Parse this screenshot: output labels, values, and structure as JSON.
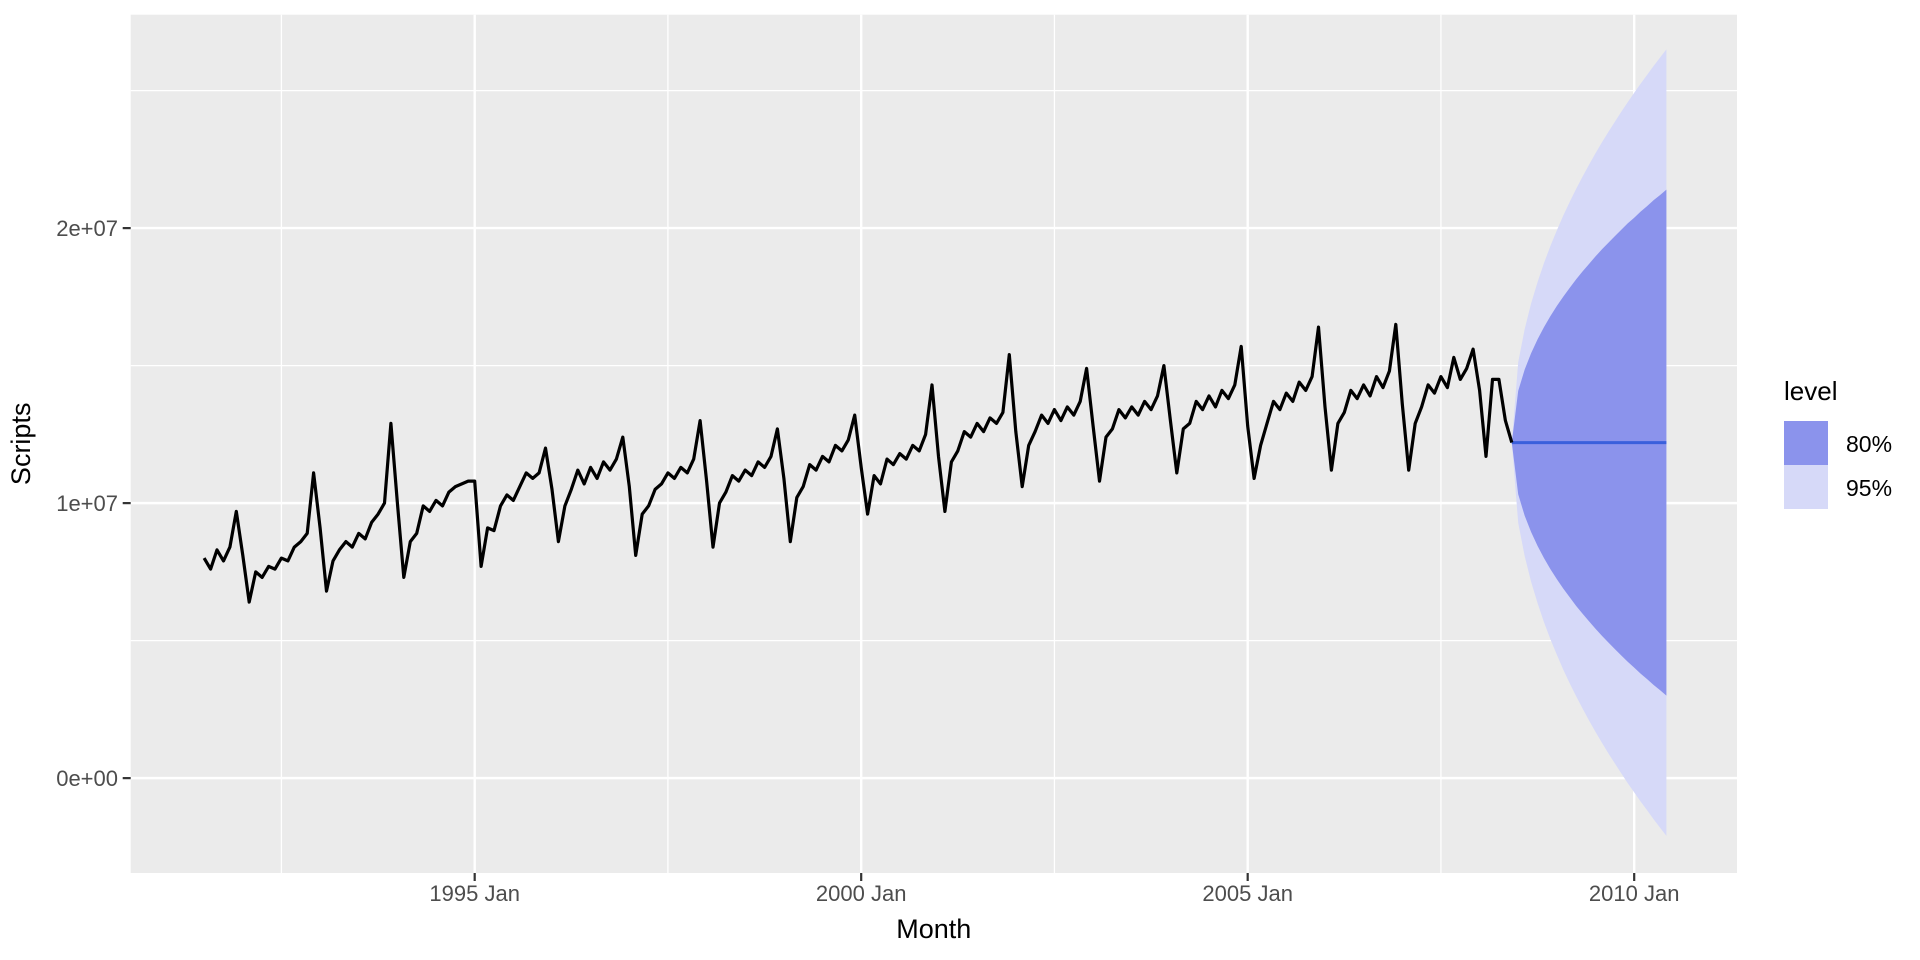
{
  "chart_data": {
    "type": "line",
    "title": "",
    "xlabel": "Month",
    "ylabel": "Scripts",
    "legend": {
      "title": "level",
      "position": "right",
      "entries": [
        {
          "label": "80%",
          "color": "#8B93EC"
        },
        {
          "label": "95%",
          "color": "#D6D9F8"
        }
      ]
    },
    "x_axis": {
      "range": [
        1990.55,
        2011.33
      ],
      "ticks": [
        {
          "value": 1995.0,
          "label": "1995 Jan"
        },
        {
          "value": 2000.0,
          "label": "2000 Jan"
        },
        {
          "value": 2005.0,
          "label": "2005 Jan"
        },
        {
          "value": 2010.0,
          "label": "2010 Jan"
        }
      ],
      "minor_ticks": [
        1992.5,
        1997.5,
        2002.5,
        2007.5
      ]
    },
    "y_axis": {
      "range": [
        -3450000,
        27760000
      ],
      "ticks": [
        {
          "value": 0,
          "label": "0e+00"
        },
        {
          "value": 10000000,
          "label": "1e+07"
        },
        {
          "value": 20000000,
          "label": "2e+07"
        }
      ],
      "minor_ticks": [
        5000000,
        15000000,
        25000000
      ]
    },
    "grid": {
      "on": true,
      "major_color": "#FFFFFF",
      "minor_color": "#FFFFFF",
      "panel_bg": "#EBEBEB"
    },
    "series": {
      "name": "Scripts",
      "color": "#000000",
      "start_year": 1991,
      "start_month": 7,
      "frequency": 12,
      "unit": 1000000,
      "values_millions": [
        8.0,
        7.6,
        8.3,
        7.9,
        8.4,
        9.7,
        8.1,
        6.4,
        7.5,
        7.3,
        7.7,
        7.6,
        8.0,
        7.9,
        8.4,
        8.6,
        8.9,
        11.1,
        9.1,
        6.8,
        7.9,
        8.3,
        8.6,
        8.4,
        8.9,
        8.7,
        9.3,
        9.6,
        10.0,
        12.9,
        10.0,
        7.3,
        8.6,
        8.9,
        9.9,
        9.7,
        10.1,
        9.9,
        10.4,
        10.6,
        10.7,
        10.8,
        10.8,
        7.7,
        9.1,
        9.0,
        9.9,
        10.3,
        10.1,
        10.6,
        11.1,
        10.9,
        11.1,
        12.0,
        10.5,
        8.6,
        9.9,
        10.5,
        11.2,
        10.7,
        11.3,
        10.9,
        11.5,
        11.2,
        11.6,
        12.4,
        10.6,
        8.1,
        9.6,
        9.9,
        10.5,
        10.7,
        11.1,
        10.9,
        11.3,
        11.1,
        11.6,
        13.0,
        10.8,
        8.4,
        10.0,
        10.4,
        11.0,
        10.8,
        11.2,
        11.0,
        11.5,
        11.3,
        11.7,
        12.7,
        10.9,
        8.6,
        10.2,
        10.6,
        11.4,
        11.2,
        11.7,
        11.5,
        12.1,
        11.9,
        12.3,
        13.2,
        11.3,
        9.6,
        11.0,
        10.7,
        11.6,
        11.4,
        11.8,
        11.6,
        12.1,
        11.9,
        12.5,
        14.3,
        11.7,
        9.7,
        11.5,
        11.9,
        12.6,
        12.4,
        12.9,
        12.6,
        13.1,
        12.9,
        13.3,
        15.4,
        12.6,
        10.6,
        12.1,
        12.6,
        13.2,
        12.9,
        13.4,
        13.0,
        13.5,
        13.2,
        13.7,
        14.9,
        12.8,
        10.8,
        12.4,
        12.7,
        13.4,
        13.1,
        13.5,
        13.2,
        13.7,
        13.4,
        13.9,
        15.0,
        13.0,
        11.1,
        12.7,
        12.9,
        13.7,
        13.4,
        13.9,
        13.5,
        14.1,
        13.8,
        14.3,
        15.7,
        12.8,
        10.9,
        12.1,
        12.9,
        13.7,
        13.4,
        14.0,
        13.7,
        14.4,
        14.1,
        14.6,
        16.4,
        13.5,
        11.2,
        12.9,
        13.3,
        14.1,
        13.8,
        14.3,
        13.9,
        14.6,
        14.2,
        14.8,
        16.5,
        13.6,
        11.2,
        12.9,
        13.5,
        14.3,
        14.0,
        14.6,
        14.2,
        15.3,
        14.5,
        14.9,
        15.6,
        14.1,
        11.7,
        14.5,
        14.5,
        13.0,
        12.2
      ]
    },
    "forecast": {
      "start_year": 2008,
      "start_month": 7,
      "horizon_months": 24,
      "mean_color": "#3A5FDC",
      "mean_millions": [
        12.2,
        12.2,
        12.2,
        12.2,
        12.2,
        12.2,
        12.2,
        12.2,
        12.2,
        12.2,
        12.2,
        12.2,
        12.2,
        12.2,
        12.2,
        12.2,
        12.2,
        12.2,
        12.2,
        12.2,
        12.2,
        12.2,
        12.2,
        12.2
      ],
      "hi80_millions": [
        14.08,
        14.86,
        15.45,
        15.96,
        16.4,
        16.8,
        17.17,
        17.51,
        17.83,
        18.14,
        18.43,
        18.7,
        18.97,
        19.23,
        19.47,
        19.71,
        19.94,
        20.17,
        20.38,
        20.6,
        20.8,
        21.01,
        21.2,
        21.4
      ],
      "lo80_millions": [
        10.32,
        9.54,
        8.95,
        8.44,
        8.0,
        7.6,
        7.23,
        6.89,
        6.57,
        6.26,
        5.97,
        5.7,
        5.43,
        5.17,
        4.93,
        4.69,
        4.46,
        4.23,
        4.02,
        3.8,
        3.6,
        3.39,
        3.2,
        3.0
      ],
      "hi95_millions": [
        15.12,
        16.33,
        17.26,
        18.04,
        18.73,
        19.35,
        19.92,
        20.46,
        20.96,
        21.43,
        21.88,
        22.31,
        22.72,
        23.12,
        23.5,
        23.87,
        24.23,
        24.58,
        24.92,
        25.25,
        25.57,
        25.89,
        26.2,
        26.5
      ],
      "lo95_millions": [
        9.28,
        8.07,
        7.14,
        6.36,
        5.67,
        5.05,
        4.48,
        3.94,
        3.44,
        2.97,
        2.52,
        2.09,
        1.68,
        1.28,
        0.9,
        0.53,
        0.17,
        -0.18,
        -0.52,
        -0.85,
        -1.17,
        -1.49,
        -1.8,
        -2.1
      ]
    }
  }
}
